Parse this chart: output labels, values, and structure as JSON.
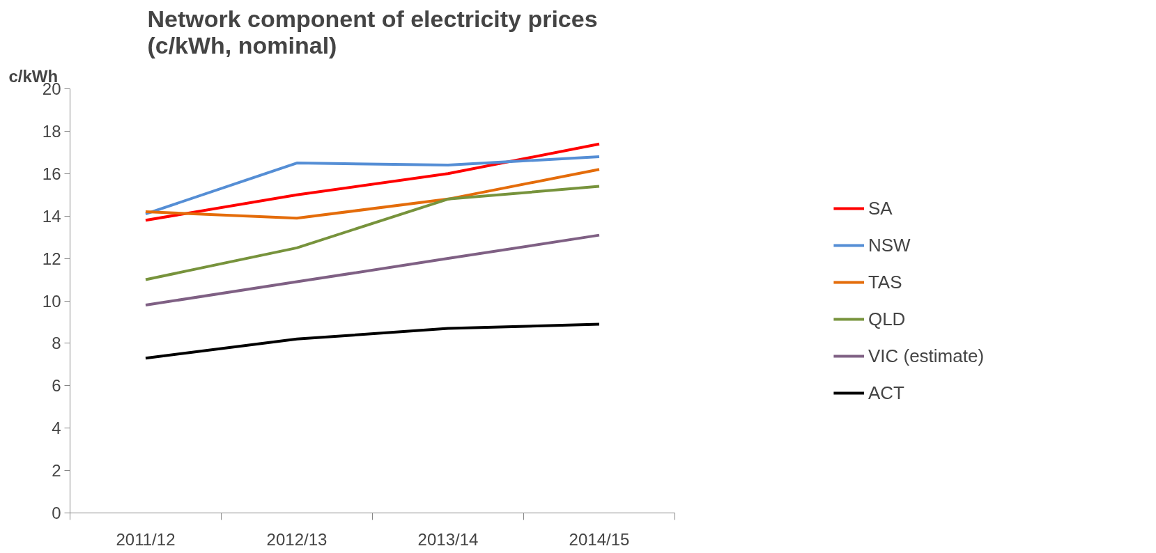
{
  "chart_data": {
    "type": "line",
    "title": "Network component of electricity prices\n(c/kWh, nominal)",
    "ylabel": "c/kWh",
    "categories": [
      "2011/12",
      "2012/13",
      "2013/14",
      "2014/15"
    ],
    "series": [
      {
        "name": "SA",
        "color": "#ff0000",
        "values": [
          13.8,
          15.0,
          16.0,
          17.4
        ]
      },
      {
        "name": "NSW",
        "color": "#558ed5",
        "values": [
          14.1,
          16.5,
          16.4,
          16.8
        ]
      },
      {
        "name": "TAS",
        "color": "#e46c0a",
        "values": [
          14.2,
          13.9,
          14.8,
          16.2
        ]
      },
      {
        "name": "QLD",
        "color": "#77933c",
        "values": [
          11.0,
          12.5,
          14.8,
          15.4
        ]
      },
      {
        "name": "VIC (estimate)",
        "color": "#7f6084",
        "values": [
          9.8,
          10.9,
          12.0,
          13.1
        ]
      },
      {
        "name": "ACT",
        "color": "#000000",
        "values": [
          7.3,
          8.2,
          8.7,
          8.9
        ]
      }
    ],
    "ylim": [
      0,
      20
    ],
    "yticks": [
      0,
      2,
      4,
      6,
      8,
      10,
      12,
      14,
      16,
      18,
      20
    ],
    "grid": false,
    "legend": "right",
    "marker": "none",
    "line_style": "solid"
  }
}
